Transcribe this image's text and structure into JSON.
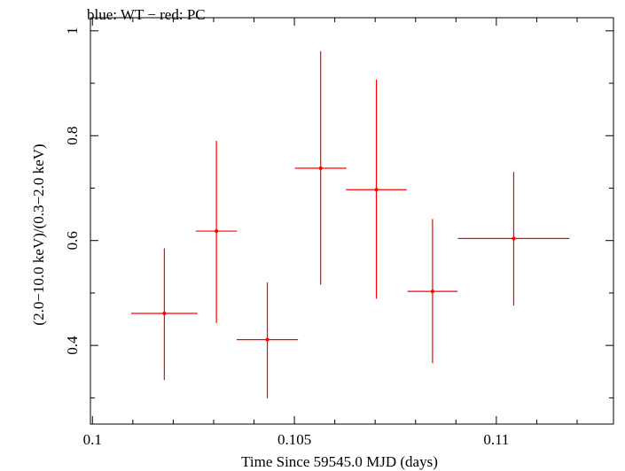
{
  "chart_data": {
    "type": "scatter",
    "title": "blue: WT − red: PC",
    "xlabel": "Time Since 59545.0 MJD (days)",
    "ylabel": "(2.0−10.0 keV)/(0.3−2.0 keV)",
    "xlim": [
      0.09995,
      0.1129
    ],
    "ylim": [
      0.25,
      1.025
    ],
    "x_major_ticks": [
      0.1,
      0.105,
      0.11
    ],
    "x_tick_labels": [
      "0.1",
      "0.105",
      "0.11"
    ],
    "y_major_ticks": [
      0.4,
      0.6,
      0.8,
      1.0
    ],
    "y_tick_labels": [
      "0.4",
      "0.6",
      "0.8",
      "1"
    ],
    "grid": false,
    "series": [
      {
        "color": "#ff0000",
        "points": [
          {
            "x": 0.10178,
            "xerr_lo": 0.00082,
            "xerr_hi": 0.00082,
            "y": 0.461,
            "yerr_lo": 0.127,
            "yerr_hi": 0.124
          },
          {
            "x": 0.10307,
            "xerr_lo": 0.00051,
            "xerr_hi": 0.00051,
            "y": 0.618,
            "yerr_lo": 0.175,
            "yerr_hi": 0.172
          },
          {
            "x": 0.10433,
            "xerr_lo": 0.00076,
            "xerr_hi": 0.00076,
            "y": 0.411,
            "yerr_lo": 0.112,
            "yerr_hi": 0.109
          },
          {
            "x": 0.10565,
            "xerr_lo": 0.00064,
            "xerr_hi": 0.00064,
            "y": 0.738,
            "yerr_lo": 0.222,
            "yerr_hi": 0.223
          },
          {
            "x": 0.10703,
            "xerr_lo": 0.00075,
            "xerr_hi": 0.00075,
            "y": 0.697,
            "yerr_lo": 0.208,
            "yerr_hi": 0.21
          },
          {
            "x": 0.10842,
            "xerr_lo": 0.00062,
            "xerr_hi": 0.00062,
            "y": 0.503,
            "yerr_lo": 0.137,
            "yerr_hi": 0.138
          },
          {
            "x": 0.11043,
            "xerr_lo": 0.00138,
            "xerr_hi": 0.00138,
            "y": 0.604,
            "yerr_lo": 0.128,
            "yerr_hi": 0.127
          }
        ]
      }
    ]
  }
}
